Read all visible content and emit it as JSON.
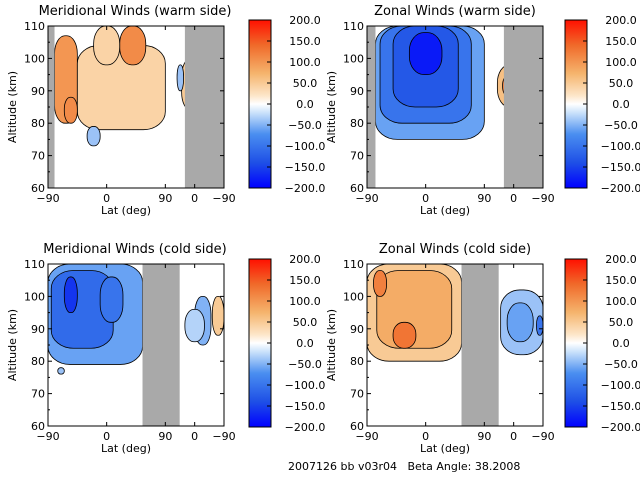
{
  "footer": {
    "id_text": "2007126 bb v03r04",
    "beta_text": "Beta Angle: 38.2008"
  },
  "chart_data": [
    {
      "type": "heatmap",
      "title": "Meridional Winds (warm side)",
      "xlabel": "Lat (deg)",
      "ylabel": "Altitude (km)",
      "xtick_labels": [
        "−90",
        "0",
        "90",
        "0",
        "−90"
      ],
      "ytick_labels": [
        "60",
        "70",
        "80",
        "90",
        "100",
        "110"
      ],
      "ylim": [
        60,
        110
      ],
      "grey_bands_lat_track": [
        [
          -90,
          -80
        ],
        [
          120,
          180
        ]
      ],
      "colorbar": {
        "min": -200.0,
        "max": 200.0,
        "tick_labels": [
          "200.0",
          "150.0",
          "100.0",
          "50.0",
          "0.0",
          "−50.0",
          "−100.0",
          "−150.0",
          "−200.0"
        ]
      },
      "features": [
        {
          "lat_track": [
            -80,
            -45
          ],
          "alt": [
            80,
            107
          ],
          "peak": 100
        },
        {
          "lat_track": [
            -45,
            90
          ],
          "alt": [
            78,
            104
          ],
          "peak": 40
        },
        {
          "lat_track": [
            20,
            60
          ],
          "alt": [
            98,
            110
          ],
          "peak": 110
        },
        {
          "lat_track": [
            -20,
            20
          ],
          "alt": [
            98,
            110
          ],
          "peak": 40
        },
        {
          "lat_track": [
            -30,
            -10
          ],
          "alt": [
            73,
            79
          ],
          "peak": -40
        },
        {
          "lat_track": [
            -65,
            -45
          ],
          "alt": [
            80,
            88
          ],
          "peak": 110
        },
        {
          "lat_track": [
            122,
            140
          ],
          "alt": [
            88,
            96
          ],
          "peak": 120
        },
        {
          "lat_track": [
            115,
            145
          ],
          "alt": [
            84,
            100
          ],
          "peak": 50
        },
        {
          "lat_track": [
            148,
            158
          ],
          "alt": [
            86,
            95
          ],
          "peak": -60
        },
        {
          "lat_track": [
            108,
            118
          ],
          "alt": [
            90,
            98
          ],
          "peak": -40
        },
        {
          "lat_track": [
            130,
            160
          ],
          "alt": [
            74,
            86
          ],
          "peak": -30
        }
      ]
    },
    {
      "type": "heatmap",
      "title": "Zonal Winds (warm side)",
      "xlabel": "Lat (deg)",
      "ylabel": "Altitude (km)",
      "xtick_labels": [
        "−90",
        "0",
        "90",
        "0",
        "−90"
      ],
      "ytick_labels": [
        "60",
        "70",
        "80",
        "90",
        "100",
        "110"
      ],
      "ylim": [
        60,
        110
      ],
      "grey_bands_lat_track": [
        [
          -90,
          -77
        ],
        [
          120,
          180
        ]
      ],
      "colorbar": {
        "min": -200.0,
        "max": 200.0,
        "tick_labels": [
          "200.0",
          "150.0",
          "100.0",
          "50.0",
          "0.0",
          "−50.0",
          "−100.0",
          "−150.0",
          "−200.0"
        ]
      },
      "features": [
        {
          "lat_track": [
            -77,
            90
          ],
          "alt": [
            75,
            110
          ],
          "peak": -60
        },
        {
          "lat_track": [
            -70,
            70
          ],
          "alt": [
            80,
            110
          ],
          "peak": -100
        },
        {
          "lat_track": [
            -50,
            50
          ],
          "alt": [
            85,
            110
          ],
          "peak": -130
        },
        {
          "lat_track": [
            -25,
            25
          ],
          "alt": [
            95,
            108
          ],
          "peak": -180
        },
        {
          "lat_track": [
            110,
            150
          ],
          "alt": [
            85,
            98
          ],
          "peak": 60
        },
        {
          "lat_track": [
            118,
            142
          ],
          "alt": [
            88,
            95
          ],
          "peak": 120
        }
      ]
    },
    {
      "type": "heatmap",
      "title": "Meridional Winds (cold side)",
      "xlabel": "Lat (deg)",
      "ylabel": "Altitude (km)",
      "xtick_labels": [
        "−90",
        "0",
        "90",
        "0",
        "−90"
      ],
      "ytick_labels": [
        "60",
        "70",
        "80",
        "90",
        "100",
        "110"
      ],
      "ylim": [
        60,
        110
      ],
      "grey_bands_lat_track": [
        [
          55,
          112
        ]
      ],
      "colorbar": {
        "min": -200.0,
        "max": 200.0,
        "tick_labels": [
          "200.0",
          "150.0",
          "100.0",
          "50.0",
          "0.0",
          "−50.0",
          "−100.0",
          "−150.0",
          "−200.0"
        ]
      },
      "features": [
        {
          "lat_track": [
            -90,
            55
          ],
          "alt": [
            79,
            110
          ],
          "peak": -60
        },
        {
          "lat_track": [
            -85,
            10
          ],
          "alt": [
            84,
            108
          ],
          "peak": -110
        },
        {
          "lat_track": [
            -65,
            -45
          ],
          "alt": [
            95,
            106
          ],
          "peak": -160
        },
        {
          "lat_track": [
            -10,
            25
          ],
          "alt": [
            92,
            106
          ],
          "peak": -100
        },
        {
          "lat_track": [
            -75,
            -65
          ],
          "alt": [
            76,
            78
          ],
          "peak": -40
        },
        {
          "lat_track": [
            135,
            160
          ],
          "alt": [
            85,
            100
          ],
          "peak": -50
        },
        {
          "lat_track": [
            120,
            150
          ],
          "alt": [
            86,
            96
          ],
          "peak": -30
        },
        {
          "lat_track": [
            162,
            180
          ],
          "alt": [
            88,
            100
          ],
          "peak": 50
        }
      ]
    },
    {
      "type": "heatmap",
      "title": "Zonal Winds (cold side)",
      "xlabel": "Lat (deg)",
      "ylabel": "Altitude (km)",
      "xtick_labels": [
        "−90",
        "0",
        "90",
        "0",
        "−90"
      ],
      "ytick_labels": [
        "60",
        "70",
        "80",
        "90",
        "100",
        "110"
      ],
      "ylim": [
        60,
        110
      ],
      "grey_bands_lat_track": [
        [
          55,
          112
        ]
      ],
      "colorbar": {
        "min": -200.0,
        "max": 200.0,
        "tick_labels": [
          "200.0",
          "150.0",
          "100.0",
          "50.0",
          "0.0",
          "−50.0",
          "−100.0",
          "−150.0",
          "−200.0"
        ]
      },
      "features": [
        {
          "lat_track": [
            -90,
            55
          ],
          "alt": [
            80,
            110
          ],
          "peak": 50
        },
        {
          "lat_track": [
            -75,
            40
          ],
          "alt": [
            84,
            108
          ],
          "peak": 80
        },
        {
          "lat_track": [
            -50,
            -15
          ],
          "alt": [
            84,
            92
          ],
          "peak": 130
        },
        {
          "lat_track": [
            -80,
            -60
          ],
          "alt": [
            100,
            108
          ],
          "peak": 120
        },
        {
          "lat_track": [
            115,
            180
          ],
          "alt": [
            82,
            102
          ],
          "peak": -40
        },
        {
          "lat_track": [
            125,
            165
          ],
          "alt": [
            86,
            98
          ],
          "peak": -60
        },
        {
          "lat_track": [
            170,
            180
          ],
          "alt": [
            88,
            94
          ],
          "peak": -100
        }
      ]
    }
  ]
}
